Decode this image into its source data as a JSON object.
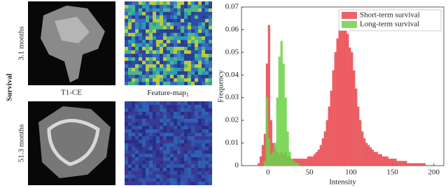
{
  "figure": {
    "group_label": "Survival",
    "rows": [
      {
        "label": "3.1 months"
      },
      {
        "label": "51.3 months"
      }
    ],
    "columns": [
      {
        "label": "T1-CE"
      },
      {
        "label": "Feature-map",
        "subscript": "1"
      }
    ]
  },
  "chart_data": {
    "type": "histogram",
    "xlabel": "Intensity",
    "ylabel": "Frequency",
    "bins": [
      -12.5,
      -10,
      -7.5,
      -5,
      -2.5,
      0,
      2.5,
      5,
      7.5,
      10,
      12.5,
      15,
      17.5,
      20,
      22.5,
      25,
      27.5,
      30,
      32.5,
      35,
      37.5,
      40,
      42.5,
      45,
      47.5,
      50,
      52.5,
      55,
      57.5,
      60,
      62.5,
      65,
      67.5,
      70,
      72.5,
      75,
      77.5,
      80,
      82.5,
      85,
      87.5,
      90,
      92.5,
      95,
      97.5,
      100,
      102.5,
      105,
      107.5,
      110,
      112.5,
      115,
      117.5,
      120,
      122.5,
      125,
      127.5,
      130,
      132.5,
      135,
      137.5,
      140,
      142.5,
      145,
      147.5,
      150,
      152.5,
      155,
      157.5,
      160,
      162.5,
      165,
      167.5,
      170,
      172.5,
      175,
      177.5,
      180,
      182.5,
      185,
      187.5,
      190,
      192.5,
      195,
      197.5,
      200
    ],
    "series": [
      {
        "name": "Short-term survival",
        "color": "#e8474c",
        "values": [
          0.001,
          0.004,
          0.009,
          0.014,
          0.045,
          0.062,
          0.02,
          0.01,
          0.008,
          0.006,
          0.005,
          0.006,
          0.005,
          0.006,
          0.004,
          0.004,
          0.003,
          0.003,
          0.003,
          0.003,
          0.003,
          0.003,
          0.003,
          0.003,
          0.004,
          0.004,
          0.004,
          0.005,
          0.006,
          0.007,
          0.009,
          0.012,
          0.015,
          0.02,
          0.026,
          0.033,
          0.042,
          0.05,
          0.056,
          0.06,
          0.064,
          0.065,
          0.062,
          0.058,
          0.052,
          0.05,
          0.042,
          0.034,
          0.026,
          0.02,
          0.015,
          0.012,
          0.01,
          0.009,
          0.008,
          0.007,
          0.006,
          0.006,
          0.005,
          0.005,
          0.004,
          0.004,
          0.004,
          0.003,
          0.003,
          0.003,
          0.003,
          0.002,
          0.002,
          0.002,
          0.002,
          0.002,
          0.001,
          0.001,
          0.001,
          0.001,
          0.001,
          0.001,
          0.001,
          0.001,
          0.001,
          0,
          0,
          0,
          0
        ]
      },
      {
        "name": "Long-term survival",
        "color": "#6fd14a",
        "values": [
          0,
          0,
          0,
          0.002,
          0.03,
          0.012,
          0.005,
          0.006,
          0.01,
          0.03,
          0.048,
          0.055,
          0.045,
          0.03,
          0.015,
          0.006,
          0.003,
          0.002,
          0.001,
          0.001,
          0,
          0,
          0,
          0,
          0,
          0,
          0,
          0,
          0,
          0,
          0,
          0,
          0,
          0,
          0,
          0,
          0,
          0,
          0,
          0,
          0,
          0,
          0,
          0,
          0,
          0,
          0,
          0,
          0,
          0,
          0,
          0,
          0,
          0,
          0,
          0,
          0,
          0,
          0,
          0,
          0,
          0,
          0,
          0,
          0,
          0,
          0,
          0,
          0,
          0,
          0,
          0,
          0,
          0,
          0,
          0,
          0,
          0,
          0,
          0,
          0,
          0,
          0,
          0,
          0
        ]
      }
    ],
    "xlim": [
      -32,
      212
    ],
    "xticks": [
      0,
      50,
      100,
      150,
      200
    ],
    "ylim": [
      0,
      0.07
    ],
    "yticks": [
      0,
      0.01,
      0.02,
      0.03,
      0.04,
      0.05,
      0.06,
      0.07
    ],
    "legend": "upper right",
    "opacity": 0.85
  }
}
